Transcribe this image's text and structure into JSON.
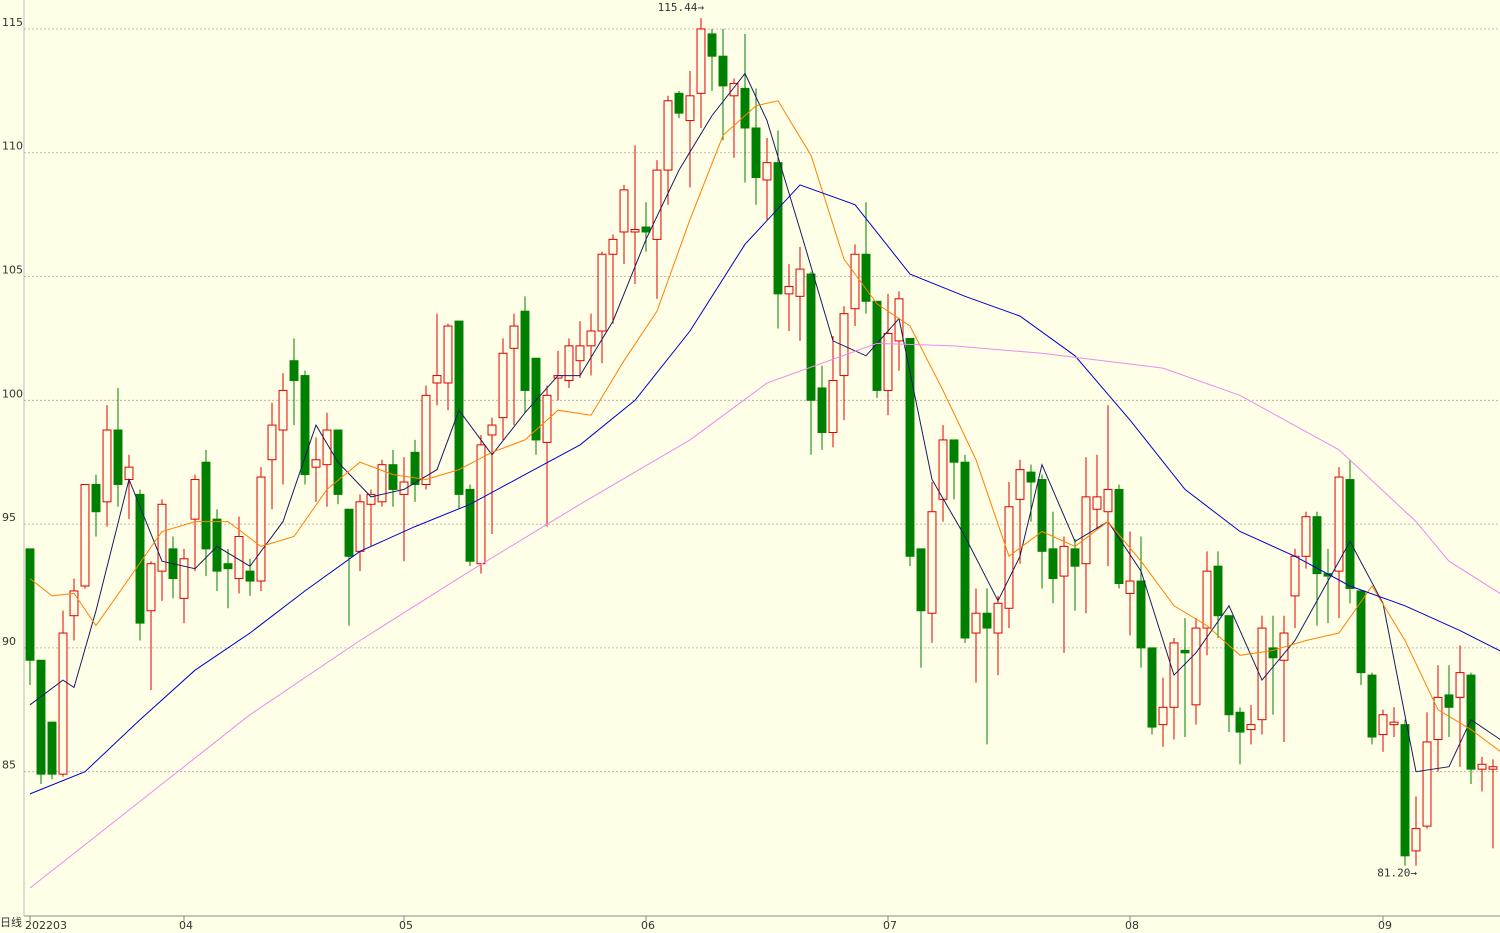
{
  "chart_data": {
    "type": "candlestick",
    "period_label": "日线",
    "ylim": [
      79.17,
      116.17
    ],
    "yticks": [
      85,
      90,
      95,
      100,
      105,
      110,
      115
    ],
    "grid": true,
    "up_color": "#e00000",
    "down_color": "#008000",
    "categories": [
      "202203",
      null,
      null,
      null,
      null,
      null,
      null,
      null,
      null,
      null,
      null,
      null,
      null,
      null,
      "04",
      null,
      null,
      null,
      null,
      null,
      null,
      null,
      null,
      null,
      null,
      null,
      null,
      null,
      null,
      null,
      null,
      null,
      null,
      null,
      "05",
      null,
      null,
      null,
      null,
      null,
      null,
      null,
      null,
      null,
      null,
      null,
      null,
      null,
      null,
      null,
      null,
      null,
      null,
      null,
      null,
      null,
      "06",
      null,
      null,
      null,
      null,
      null,
      null,
      null,
      null,
      null,
      null,
      null,
      null,
      null,
      null,
      null,
      null,
      null,
      null,
      null,
      null,
      null,
      "07",
      null,
      null,
      null,
      null,
      null,
      null,
      null,
      null,
      null,
      null,
      null,
      null,
      null,
      null,
      null,
      null,
      null,
      null,
      null,
      null,
      null,
      "08",
      null,
      null,
      null,
      null,
      null,
      null,
      null,
      null,
      null,
      null,
      null,
      null,
      null,
      null,
      null,
      null,
      null,
      null,
      null,
      null,
      null,
      null,
      "09",
      null,
      null,
      null,
      null,
      null,
      null,
      null,
      null,
      null,
      null,
      null
    ],
    "ohlc": [
      [
        94.0,
        94.0,
        88.5,
        89.5
      ],
      [
        89.5,
        89.5,
        84.5,
        84.9
      ],
      [
        87.0,
        87.0,
        84.7,
        84.9
      ],
      [
        84.9,
        91.5,
        84.8,
        90.6
      ],
      [
        91.3,
        92.8,
        90.3,
        92.3
      ],
      [
        92.5,
        96.6,
        92.4,
        96.6
      ],
      [
        96.6,
        97.0,
        94.5,
        95.5
      ],
      [
        95.9,
        99.8,
        94.9,
        98.8
      ],
      [
        98.8,
        100.5,
        95.7,
        96.6
      ],
      [
        96.8,
        97.8,
        95.2,
        97.3
      ],
      [
        96.2,
        96.4,
        90.3,
        91.0
      ],
      [
        91.5,
        93.5,
        88.3,
        93.4
      ],
      [
        93.1,
        96.0,
        91.9,
        95.8
      ],
      [
        94.0,
        94.5,
        92.0,
        92.8
      ],
      [
        92.0,
        94.0,
        91.0,
        93.6
      ],
      [
        95.2,
        97.0,
        93.1,
        96.8
      ],
      [
        97.5,
        98.0,
        92.9,
        94.0
      ],
      [
        95.2,
        95.6,
        92.3,
        93.1
      ],
      [
        93.4,
        94.0,
        91.6,
        93.2
      ],
      [
        92.8,
        95.3,
        92.2,
        94.5
      ],
      [
        93.1,
        93.6,
        92.1,
        92.7
      ],
      [
        92.7,
        97.3,
        92.3,
        96.9
      ],
      [
        97.6,
        99.9,
        95.6,
        99.0
      ],
      [
        98.8,
        101.1,
        96.6,
        100.4
      ],
      [
        101.6,
        102.5,
        99.0,
        100.8
      ],
      [
        101.0,
        101.2,
        96.6,
        97.0
      ],
      [
        97.3,
        98.5,
        95.9,
        97.6
      ],
      [
        97.4,
        99.5,
        95.7,
        98.8
      ],
      [
        98.8,
        98.8,
        95.8,
        96.2
      ],
      [
        95.6,
        95.6,
        90.9,
        93.7
      ],
      [
        93.9,
        96.2,
        93.1,
        95.9
      ],
      [
        95.8,
        96.4,
        94.1,
        96.2
      ],
      [
        95.9,
        97.6,
        95.7,
        97.4
      ],
      [
        97.4,
        98.0,
        95.7,
        96.4
      ],
      [
        96.2,
        97.7,
        93.5,
        96.7
      ],
      [
        97.9,
        98.4,
        95.9,
        96.6
      ],
      [
        96.6,
        100.6,
        96.4,
        100.2
      ],
      [
        100.7,
        103.5,
        99.8,
        101.0
      ],
      [
        100.7,
        103.1,
        99.6,
        103.0
      ],
      [
        103.2,
        103.2,
        95.6,
        96.2
      ],
      [
        96.4,
        96.6,
        93.3,
        93.5
      ],
      [
        93.4,
        98.6,
        93.0,
        98.2
      ],
      [
        98.6,
        99.3,
        94.6,
        99.0
      ],
      [
        99.3,
        102.5,
        98.4,
        101.9
      ],
      [
        102.1,
        103.5,
        99.0,
        103.0
      ],
      [
        103.6,
        104.2,
        99.5,
        100.4
      ],
      [
        101.7,
        101.7,
        97.8,
        98.4
      ],
      [
        98.3,
        100.6,
        94.9,
        100.2
      ],
      [
        100.9,
        102.0,
        100.0,
        101.0
      ],
      [
        100.8,
        102.5,
        100.5,
        102.2
      ],
      [
        101.6,
        103.2,
        100.9,
        102.2
      ],
      [
        102.2,
        103.5,
        101.0,
        102.8
      ],
      [
        102.8,
        106.0,
        101.5,
        105.9
      ],
      [
        105.9,
        106.7,
        103.1,
        106.5
      ],
      [
        106.8,
        108.7,
        105.5,
        108.5
      ],
      [
        106.8,
        110.3,
        104.7,
        106.9
      ],
      [
        107.0,
        108.0,
        106.0,
        106.8
      ],
      [
        106.5,
        109.7,
        104.1,
        109.3
      ],
      [
        109.3,
        112.3,
        107.9,
        112.1
      ],
      [
        112.4,
        112.5,
        111.4,
        111.6
      ],
      [
        111.3,
        113.3,
        108.6,
        112.3
      ],
      [
        112.4,
        115.44,
        111.0,
        115.0
      ],
      [
        114.8,
        115.0,
        112.5,
        113.9
      ],
      [
        113.9,
        115.0,
        110.5,
        112.7
      ],
      [
        112.3,
        113.0,
        109.8,
        112.8
      ],
      [
        112.6,
        114.8,
        108.8,
        111.0
      ],
      [
        111.0,
        112.6,
        107.9,
        109.0
      ],
      [
        108.9,
        110.6,
        107.3,
        109.6
      ],
      [
        109.6,
        110.9,
        102.9,
        104.3
      ],
      [
        104.3,
        105.5,
        102.8,
        104.6
      ],
      [
        104.2,
        106.2,
        102.4,
        105.3
      ],
      [
        105.1,
        105.2,
        97.8,
        100.0
      ],
      [
        100.5,
        101.4,
        98.0,
        98.7
      ],
      [
        98.7,
        102.6,
        98.1,
        100.8
      ],
      [
        101.0,
        103.8,
        99.2,
        103.5
      ],
      [
        103.7,
        106.3,
        103.0,
        105.9
      ],
      [
        105.9,
        108.0,
        103.5,
        104.0
      ],
      [
        104.0,
        104.0,
        100.1,
        100.4
      ],
      [
        100.4,
        104.3,
        99.4,
        102.7
      ],
      [
        102.4,
        104.4,
        101.2,
        104.1
      ],
      [
        102.5,
        102.5,
        93.3,
        93.7
      ],
      [
        94.0,
        94.0,
        89.2,
        91.5
      ],
      [
        91.4,
        96.7,
        90.2,
        95.5
      ],
      [
        96.0,
        99.0,
        95.1,
        98.4
      ],
      [
        98.4,
        98.4,
        96.0,
        97.5
      ],
      [
        97.5,
        97.8,
        90.2,
        90.4
      ],
      [
        90.6,
        92.4,
        88.6,
        91.4
      ],
      [
        91.4,
        92.4,
        86.1,
        90.8
      ],
      [
        90.6,
        92.1,
        88.9,
        91.8
      ],
      [
        91.6,
        96.7,
        90.8,
        95.7
      ],
      [
        96.0,
        97.6,
        93.4,
        97.2
      ],
      [
        97.1,
        97.4,
        95.1,
        96.7
      ],
      [
        96.8,
        97.0,
        92.4,
        93.9
      ],
      [
        94.0,
        95.5,
        91.8,
        92.8
      ],
      [
        92.9,
        94.5,
        89.8,
        94.1
      ],
      [
        94.0,
        94.4,
        91.5,
        93.3
      ],
      [
        93.4,
        97.7,
        91.4,
        96.1
      ],
      [
        95.6,
        97.8,
        94.8,
        96.1
      ],
      [
        95.5,
        99.8,
        93.3,
        96.4
      ],
      [
        96.4,
        96.6,
        92.4,
        92.6
      ],
      [
        92.2,
        94.7,
        90.5,
        92.7
      ],
      [
        92.7,
        94.5,
        89.2,
        90.0
      ],
      [
        90.0,
        90.0,
        86.5,
        86.8
      ],
      [
        86.9,
        88.8,
        86.0,
        87.6
      ],
      [
        87.6,
        90.4,
        86.3,
        90.2
      ],
      [
        89.9,
        91.2,
        86.4,
        89.8
      ],
      [
        87.7,
        91.2,
        86.9,
        90.8
      ],
      [
        90.8,
        93.9,
        89.7,
        93.1
      ],
      [
        93.3,
        93.9,
        90.4,
        91.3
      ],
      [
        91.3,
        91.3,
        86.6,
        87.3
      ],
      [
        87.4,
        87.6,
        85.3,
        86.6
      ],
      [
        86.7,
        87.7,
        86.1,
        86.9
      ],
      [
        87.1,
        91.3,
        86.5,
        90.8
      ],
      [
        90.0,
        91.3,
        87.3,
        89.6
      ],
      [
        89.5,
        91.3,
        86.2,
        90.6
      ],
      [
        92.1,
        94.0,
        90.8,
        93.7
      ],
      [
        93.7,
        95.5,
        93.2,
        95.3
      ],
      [
        95.3,
        95.5,
        90.9,
        93.0
      ],
      [
        93.0,
        94.0,
        91.0,
        92.9
      ],
      [
        93.1,
        97.3,
        91.2,
        96.9
      ],
      [
        96.8,
        97.6,
        91.8,
        92.4
      ],
      [
        92.3,
        92.3,
        88.5,
        89.0
      ],
      [
        88.9,
        89.0,
        86.1,
        86.4
      ],
      [
        86.5,
        87.5,
        85.8,
        87.3
      ],
      [
        86.9,
        87.6,
        86.4,
        87.0
      ],
      [
        86.9,
        87.1,
        81.2,
        81.6
      ],
      [
        81.8,
        84.0,
        81.2,
        82.7
      ],
      [
        82.8,
        87.4,
        82.7,
        86.2
      ],
      [
        86.3,
        89.3,
        85.0,
        88.0
      ],
      [
        88.1,
        89.3,
        86.4,
        87.6
      ],
      [
        88.0,
        90.1,
        85.2,
        89.0
      ],
      [
        88.9,
        89.0,
        84.5,
        85.1
      ],
      [
        85.1,
        85.6,
        84.2,
        85.3
      ],
      [
        85.1,
        85.5,
        81.9,
        85.2
      ]
    ],
    "annotations": [
      "115.44→",
      "81.20→"
    ],
    "series": [
      {
        "color": "#1a1a66",
        "x": [
          0,
          3,
          4,
          6,
          9,
          12,
          15,
          17,
          20,
          23,
          26,
          28,
          31,
          34,
          37,
          39,
          42,
          45,
          48,
          50,
          53,
          56,
          59,
          62,
          65,
          67,
          70,
          73,
          76,
          79,
          82,
          85,
          88,
          90,
          92,
          95,
          98,
          101,
          104,
          106,
          109,
          112,
          115,
          118,
          120,
          123,
          126,
          129,
          131,
          134
        ],
        "values": [
          87.7,
          88.7,
          88.4,
          91.5,
          96.8,
          93.5,
          93.2,
          94.1,
          93.3,
          95.1,
          99.0,
          97.5,
          96.1,
          96.4,
          97.2,
          99.6,
          97.8,
          99.5,
          101.0,
          101.0,
          103.2,
          106.5,
          109.3,
          111.5,
          113.2,
          111.3,
          106.9,
          102.4,
          101.8,
          103.3,
          96.8,
          94.5,
          91.9,
          93.7,
          97.4,
          94.3,
          95.1,
          93.1,
          88.9,
          89.8,
          91.7,
          88.7,
          90.3,
          92.7,
          94.3,
          91.8,
          85.0,
          85.2,
          87.1,
          86.2
        ]
      },
      {
        "color": "#ff8000",
        "x": [
          0,
          2,
          4,
          6,
          9,
          12,
          15,
          18,
          21,
          24,
          27,
          30,
          33,
          36,
          39,
          42,
          45,
          48,
          51,
          54,
          57,
          60,
          63,
          66,
          68,
          71,
          74,
          77,
          80,
          83,
          86,
          89,
          92,
          95,
          98,
          101,
          104,
          107,
          110,
          113,
          116,
          119,
          122,
          125,
          128,
          131,
          134
        ],
        "values": [
          92.8,
          92.1,
          92.2,
          90.9,
          92.8,
          94.7,
          95.1,
          95.1,
          94.1,
          94.5,
          96.4,
          97.5,
          97.0,
          96.8,
          97.2,
          97.9,
          98.4,
          99.6,
          99.4,
          101.6,
          103.6,
          107.3,
          110.7,
          111.9,
          112.1,
          109.9,
          105.7,
          103.9,
          103.0,
          100.4,
          97.6,
          93.7,
          94.7,
          94.1,
          95.1,
          93.5,
          91.7,
          90.9,
          89.7,
          89.9,
          90.3,
          90.6,
          92.5,
          90.3,
          87.5,
          86.7,
          85.7
        ]
      },
      {
        "color": "#0000cc",
        "x": [
          0,
          5,
          10,
          15,
          20,
          25,
          30,
          35,
          40,
          45,
          50,
          55,
          60,
          65,
          70,
          75,
          80,
          85,
          90,
          95,
          100,
          105,
          110,
          115,
          120,
          125,
          130,
          134
        ],
        "values": [
          84.1,
          85.0,
          87.1,
          89.1,
          90.6,
          92.3,
          93.9,
          94.9,
          95.8,
          97.0,
          98.2,
          100.0,
          102.8,
          106.3,
          108.7,
          107.9,
          105.1,
          104.2,
          103.4,
          101.8,
          99.2,
          96.4,
          94.7,
          93.7,
          92.5,
          91.7,
          90.7,
          89.8
        ]
      },
      {
        "color": "#ee88ee",
        "x": [
          0,
          10,
          20,
          30,
          40,
          50,
          60,
          67,
          77,
          84,
          92,
          103,
          110,
          119,
          126,
          129,
          134
        ],
        "values": [
          80.3,
          83.8,
          87.3,
          90.3,
          93.1,
          95.8,
          98.4,
          100.7,
          102.3,
          102.2,
          101.9,
          101.3,
          100.2,
          98.0,
          95.1,
          93.5,
          92.1
        ]
      }
    ]
  }
}
